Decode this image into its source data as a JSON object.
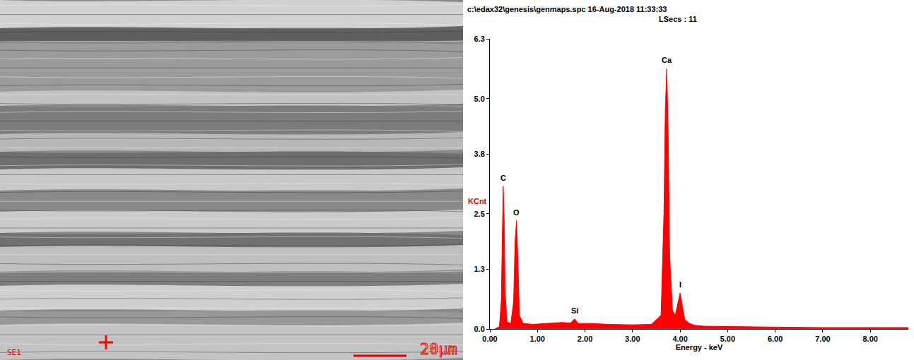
{
  "chart_data": {
    "type": "area",
    "title": "c:\\edax32\\genesis\\genmaps.spc 16-Aug-2018 11:33:33",
    "subtitle": "LSecs : 11",
    "x_label": "Energy - keV",
    "y_label": "KCnt",
    "color": "#ff0000",
    "grid": false,
    "x": [
      0.1,
      0.2,
      0.24,
      0.26,
      0.28,
      0.3,
      0.32,
      0.36,
      0.44,
      0.5,
      0.53,
      0.56,
      0.59,
      0.62,
      0.7,
      0.9,
      1.2,
      1.5,
      1.7,
      1.78,
      1.86,
      2.1,
      2.5,
      3.0,
      3.4,
      3.6,
      3.66,
      3.69,
      3.72,
      3.75,
      3.78,
      3.84,
      3.9,
      3.96,
      4.0,
      4.04,
      4.1,
      4.2,
      4.3,
      4.5,
      5.0,
      6.0,
      7.0,
      8.0,
      8.8
    ],
    "values": [
      0.0,
      0.05,
      0.6,
      2.2,
      3.1,
      2.4,
      0.8,
      0.15,
      0.12,
      0.6,
      1.9,
      2.35,
      1.5,
      0.3,
      0.12,
      0.1,
      0.12,
      0.14,
      0.13,
      0.22,
      0.12,
      0.12,
      0.1,
      0.09,
      0.1,
      0.3,
      2.5,
      4.8,
      5.65,
      4.2,
      1.6,
      0.4,
      0.3,
      0.6,
      0.78,
      0.55,
      0.2,
      0.12,
      0.08,
      0.06,
      0.05,
      0.04,
      0.03,
      0.03,
      0.03
    ],
    "xlim": [
      0,
      8.8
    ],
    "xticks": [
      {
        "value": 0,
        "label": "0.00"
      },
      {
        "value": 1,
        "label": "1.00"
      },
      {
        "value": 2,
        "label": "2.00"
      },
      {
        "value": 3,
        "label": "3.00"
      },
      {
        "value": 4,
        "label": "4.00"
      },
      {
        "value": 5,
        "label": "5.00"
      },
      {
        "value": 6,
        "label": "6.00"
      },
      {
        "value": 7,
        "label": "7.00"
      },
      {
        "value": 8,
        "label": "8.00"
      }
    ],
    "ylim": [
      0,
      6.3
    ],
    "yticks": [
      {
        "value": 0,
        "label": "0.0"
      },
      1.3,
      2.5,
      3.8,
      {
        "value": 5,
        "label": "5.0"
      },
      6.3
    ],
    "annotations": [
      {
        "text": "C",
        "x": 0.28,
        "y": 3.1
      },
      {
        "text": "O",
        "x": 0.56,
        "y": 2.35
      },
      {
        "text": "Si",
        "x": 1.78,
        "y": 0.22
      },
      {
        "text": "Ca",
        "x": 3.72,
        "y": 5.65
      },
      {
        "text": "I",
        "x": 4.0,
        "y": 0.78
      }
    ]
  },
  "micrograph": {
    "detector": "SE1",
    "scale_bar": "20μm"
  }
}
